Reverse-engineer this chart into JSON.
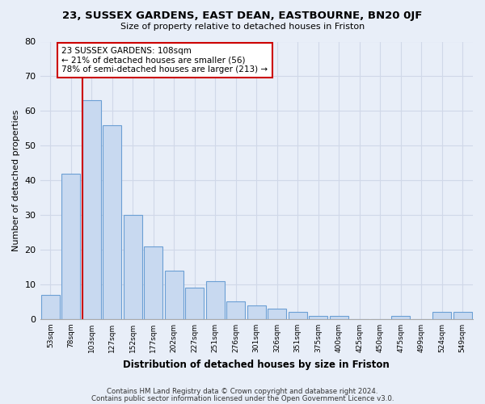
{
  "title": "23, SUSSEX GARDENS, EAST DEAN, EASTBOURNE, BN20 0JF",
  "subtitle": "Size of property relative to detached houses in Friston",
  "xlabel": "Distribution of detached houses by size in Friston",
  "ylabel": "Number of detached properties",
  "categories": [
    "53sqm",
    "78sqm",
    "103sqm",
    "127sqm",
    "152sqm",
    "177sqm",
    "202sqm",
    "227sqm",
    "251sqm",
    "276sqm",
    "301sqm",
    "326sqm",
    "351sqm",
    "375sqm",
    "400sqm",
    "425sqm",
    "450sqm",
    "475sqm",
    "499sqm",
    "524sqm",
    "549sqm"
  ],
  "values": [
    7,
    42,
    63,
    56,
    30,
    21,
    14,
    9,
    11,
    5,
    4,
    3,
    2,
    1,
    1,
    0,
    0,
    1,
    0,
    2,
    2
  ],
  "bar_color": "#c8d9f0",
  "bar_edge_color": "#6b9fd4",
  "vline_color": "#cc0000",
  "annotation_text": "23 SUSSEX GARDENS: 108sqm\n← 21% of detached houses are smaller (56)\n78% of semi-detached houses are larger (213) →",
  "annotation_box_color": "#ffffff",
  "annotation_box_edge": "#cc0000",
  "ylim": [
    0,
    80
  ],
  "yticks": [
    0,
    10,
    20,
    30,
    40,
    50,
    60,
    70,
    80
  ],
  "grid_color": "#d0d8e8",
  "background_color": "#e8eef8",
  "footer1": "Contains HM Land Registry data © Crown copyright and database right 2024.",
  "footer2": "Contains public sector information licensed under the Open Government Licence v3.0."
}
